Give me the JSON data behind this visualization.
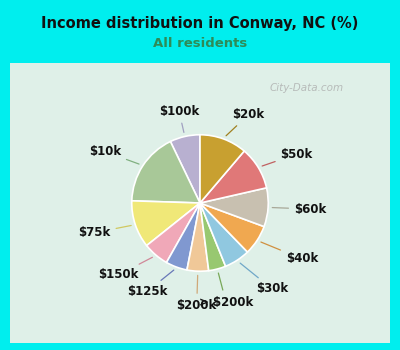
{
  "title": "Income distribution in Conway, NC (%)",
  "subtitle": "All residents",
  "title_color": "#111111",
  "subtitle_color": "#2e8b57",
  "background_outer": "#00eeee",
  "background_inner_color": "#d8efe0",
  "watermark": "City-Data.com",
  "labels": [
    "$100k",
    "$10k",
    "$75k",
    "$150k",
    "$125k",
    "$200k",
    "> $200k",
    "$30k",
    "$40k",
    "$60k",
    "$50k",
    "$20k"
  ],
  "values": [
    7,
    17,
    11,
    6,
    5,
    5,
    4,
    6,
    7,
    9,
    10,
    11
  ],
  "colors": [
    "#b8b0d0",
    "#a8c898",
    "#f0e878",
    "#f0a8b8",
    "#8098d0",
    "#f0c898",
    "#98c870",
    "#90c8e0",
    "#f0a850",
    "#c8c0b0",
    "#e07878",
    "#c8a030"
  ],
  "label_fontsize": 8.5,
  "startangle": 90,
  "wedge_linewidth": 1.2,
  "wedge_edgecolor": "#ffffff",
  "line_colors": [
    "#a0a0c0",
    "#80b080",
    "#d0c860",
    "#d08898",
    "#6878b8",
    "#d0a878",
    "#78a858",
    "#70a8c8",
    "#d09040",
    "#a8a898",
    "#c06060",
    "#a08020"
  ]
}
